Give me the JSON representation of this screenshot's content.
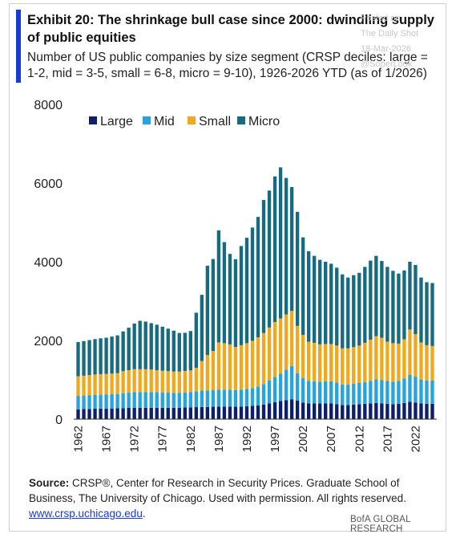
{
  "header": {
    "title": "Exhibit 20: The shrinkage bull case since 2000: dwindling supply of public equities",
    "subtitle": "Number of US public companies by size segment (CRSP deciles: large = 1-2, mid = 3-5, small = 6-8, micro = 9-10), 1926-2026 YTD (as of 1/2026)"
  },
  "watermark": {
    "line1": "Posted on",
    "line2": "The Daily Shot",
    "line3": "18-Mar-2026",
    "line4": "@SoberLook"
  },
  "footer": {
    "source_label": "Source:",
    "source_text": "CRSP®, Center for Research in Security Prices. Graduate School of Business, The University of Chicago.  Used with permission. All rights reserved.",
    "source_link": "www.crsp.uchicago.edu",
    "brand": "BofA GLOBAL RESEARCH"
  },
  "chart_data": {
    "type": "bar",
    "stacked": true,
    "ylim": [
      0,
      8000
    ],
    "yticks": [
      0,
      2000,
      4000,
      6000,
      8000
    ],
    "xtick_labels": [
      "1962",
      "1967",
      "1972",
      "1977",
      "1982",
      "1987",
      "1992",
      "1997",
      "2002",
      "2007",
      "2012",
      "2017",
      "2022"
    ],
    "legend_position": "top",
    "grid": false,
    "categories": [
      1962,
      1963,
      1964,
      1965,
      1966,
      1967,
      1968,
      1969,
      1970,
      1971,
      1972,
      1973,
      1974,
      1975,
      1976,
      1977,
      1978,
      1979,
      1980,
      1981,
      1982,
      1983,
      1984,
      1985,
      1986,
      1987,
      1988,
      1989,
      1990,
      1991,
      1992,
      1993,
      1994,
      1995,
      1996,
      1997,
      1998,
      1999,
      2000,
      2001,
      2002,
      2003,
      2004,
      2005,
      2006,
      2007,
      2008,
      2009,
      2010,
      2011,
      2012,
      2013,
      2014,
      2015,
      2016,
      2017,
      2018,
      2019,
      2020,
      2021,
      2022,
      2023,
      2024,
      2025
    ],
    "series": [
      {
        "name": "Large",
        "color": "#0c1f6a",
        "values": [
          250,
          255,
          260,
          265,
          268,
          270,
          272,
          275,
          280,
          285,
          290,
          290,
          290,
          290,
          290,
          290,
          290,
          290,
          290,
          295,
          300,
          305,
          310,
          310,
          315,
          320,
          320,
          320,
          315,
          320,
          330,
          340,
          350,
          370,
          400,
          430,
          460,
          480,
          500,
          470,
          420,
          400,
          400,
          400,
          400,
          400,
          380,
          360,
          360,
          370,
          380,
          390,
          400,
          410,
          400,
          390,
          380,
          390,
          410,
          440,
          420,
          400,
          390,
          390
        ]
      },
      {
        "name": "Mid",
        "color": "#27a3dd",
        "values": [
          340,
          345,
          350,
          355,
          358,
          360,
          362,
          365,
          380,
          390,
          400,
          400,
          400,
          400,
          395,
          390,
          385,
          380,
          380,
          385,
          390,
          400,
          420,
          420,
          420,
          430,
          430,
          430,
          420,
          430,
          440,
          450,
          480,
          520,
          580,
          640,
          700,
          780,
          850,
          700,
          620,
          570,
          560,
          550,
          560,
          560,
          550,
          520,
          520,
          530,
          540,
          550,
          570,
          600,
          590,
          580,
          570,
          580,
          620,
          690,
          660,
          600,
          590,
          590
        ]
      },
      {
        "name": "Small",
        "color": "#f0a91f",
        "values": [
          500,
          505,
          510,
          515,
          518,
          520,
          525,
          530,
          560,
          570,
          580,
          580,
          580,
          570,
          560,
          550,
          545,
          540,
          540,
          545,
          550,
          600,
          750,
          900,
          1000,
          1200,
          1180,
          1150,
          1100,
          1130,
          1160,
          1200,
          1250,
          1300,
          1350,
          1400,
          1400,
          1400,
          1400,
          1200,
          1100,
          1000,
          980,
          950,
          950,
          950,
          940,
          920,
          920,
          930,
          950,
          1000,
          1050,
          1100,
          1080,
          1000,
          980,
          950,
          1000,
          1150,
          1080,
          950,
          900,
          880
        ]
      },
      {
        "name": "Micro",
        "color": "#176b80",
        "values": [
          870,
          880,
          890,
          900,
          910,
          920,
          940,
          960,
          1010,
          1080,
          1160,
          1230,
          1210,
          1180,
          1155,
          1120,
          1080,
          1040,
          980,
          970,
          1000,
          1400,
          1680,
          2270,
          2335,
          2850,
          2570,
          2300,
          2230,
          2520,
          2680,
          2880,
          3060,
          3380,
          3480,
          3700,
          3840,
          3470,
          3150,
          2900,
          2480,
          2300,
          2210,
          2150,
          2090,
          2040,
          1980,
          1880,
          1800,
          1830,
          1850,
          1930,
          2010,
          2040,
          1950,
          1900,
          1840,
          1780,
          1750,
          1720,
          1760,
          1650,
          1600,
          1600
        ]
      }
    ]
  }
}
